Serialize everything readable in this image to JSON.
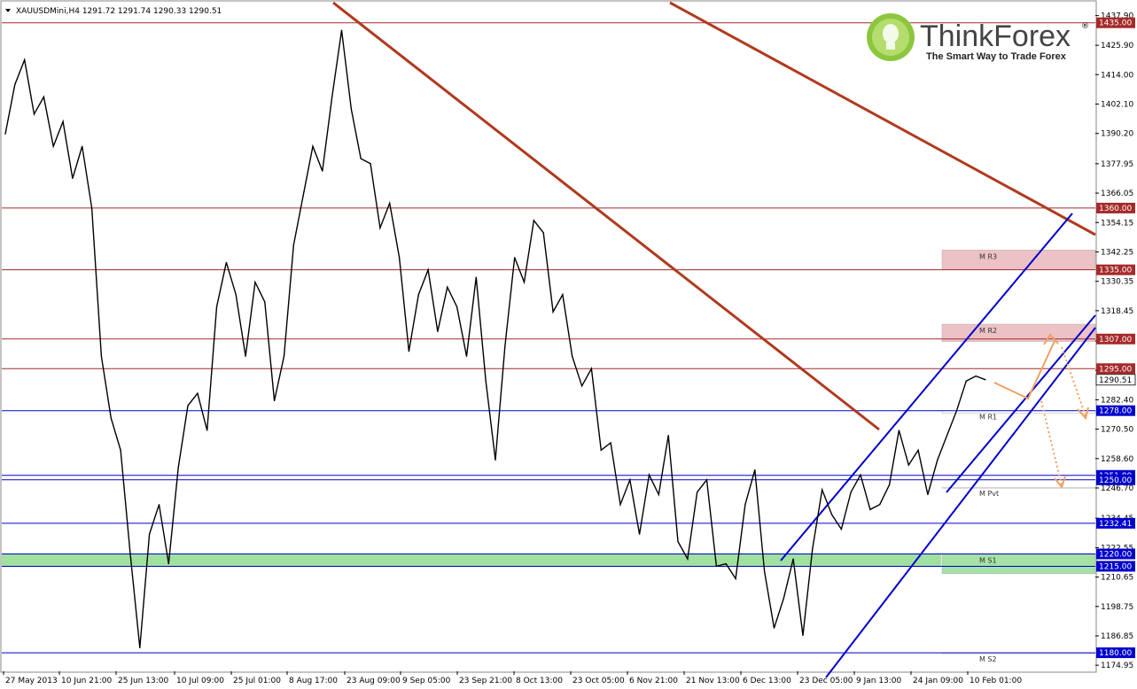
{
  "header": {
    "symbol_info": "XAUUSDMini,H4  1291.72 1291.74 1290.33 1290.51"
  },
  "logo": {
    "brand": "ThinkForex",
    "registered": "®",
    "tagline": "The Smart Way to Trade Forex"
  },
  "chart_data": {
    "type": "line",
    "title": "",
    "timeframe": "H4",
    "ylim": [
      1172.5,
      1443.5
    ],
    "x_tick_labels": [
      "27 May 2013",
      "10 Jun 21:00",
      "25 Jun 13:00",
      "10 Jul 09:00",
      "25 Jul 01:00",
      "8 Aug 17:00",
      "23 Aug 09:00",
      "9 Sep 05:00",
      "23 Sep 21:00",
      "8 Oct 13:00",
      "23 Oct 05:00",
      "6 Nov 21:00",
      "21 Nov 13:00",
      "6 Dec 13:00",
      "23 Dec 05:00",
      "9 Jan 13:00",
      "24 Jan 09:00",
      "10 Feb 01:00"
    ],
    "y_ticks": [
      "1437.90",
      "1425.90",
      "1414.00",
      "1402.10",
      "1390.20",
      "1377.95",
      "1366.05",
      "1354.15",
      "1342.25",
      "1330.35",
      "1318.45",
      "1306.20",
      "1294.30",
      "1282.40",
      "1270.50",
      "1258.60",
      "1246.70",
      "1234.45",
      "1222.55",
      "1210.65",
      "1198.75",
      "1186.85",
      "1174.95"
    ],
    "price_series": [
      1390,
      1410,
      1420,
      1398,
      1405,
      1385,
      1395,
      1372,
      1385,
      1360,
      1300,
      1275,
      1262,
      1220,
      1182,
      1228,
      1240,
      1216,
      1255,
      1280,
      1285,
      1270,
      1320,
      1338,
      1325,
      1300,
      1330,
      1322,
      1282,
      1300,
      1345,
      1365,
      1385,
      1375,
      1405,
      1432,
      1400,
      1380,
      1378,
      1352,
      1362,
      1340,
      1302,
      1325,
      1335,
      1310,
      1328,
      1320,
      1300,
      1332,
      1290,
      1258,
      1304,
      1340,
      1330,
      1355,
      1350,
      1318,
      1325,
      1300,
      1288,
      1295,
      1262,
      1265,
      1240,
      1250,
      1228,
      1252,
      1244,
      1268,
      1225,
      1218,
      1245,
      1250,
      1215,
      1216,
      1210,
      1240,
      1254,
      1213,
      1190,
      1202,
      1218,
      1187,
      1222,
      1246,
      1236,
      1230,
      1245,
      1252,
      1238,
      1240,
      1248,
      1270,
      1256,
      1262,
      1244,
      1258,
      1268,
      1278,
      1290,
      1292,
      1290.51
    ],
    "horizontal_levels": [
      {
        "price": 1435.0,
        "label": "1435.00",
        "color": "#a52a2a"
      },
      {
        "price": 1360.0,
        "label": "1360.00",
        "color": "#a52a2a"
      },
      {
        "price": 1335.0,
        "label": "1335.00",
        "color": "#a52a2a"
      },
      {
        "price": 1307.0,
        "label": "1307.00",
        "color": "#a52a2a"
      },
      {
        "price": 1295.0,
        "label": "1295.00",
        "color": "#a52a2a"
      },
      {
        "price": 1278.0,
        "label": "1278.00",
        "color": "#0000cd"
      },
      {
        "price": 1251.8,
        "label": "1251.80",
        "color": "#0000cd"
      },
      {
        "price": 1250.0,
        "label": "1250.00",
        "color": "#0000cd"
      },
      {
        "price": 1232.41,
        "label": "1232.41",
        "color": "#0000cd"
      },
      {
        "price": 1220.0,
        "label": "1220.00",
        "color": "#0000cd"
      },
      {
        "price": 1215.0,
        "label": "1215.00",
        "color": "#0000cd"
      },
      {
        "price": 1180.0,
        "label": "1180.00",
        "color": "#0000cd"
      }
    ],
    "current_price": {
      "price": 1290.51,
      "label": "1290.51"
    },
    "zones": [
      {
        "name": "M R3",
        "top": 1343,
        "bottom": 1335,
        "color": "#e8b4b8"
      },
      {
        "name": "M R2",
        "top": 1313,
        "bottom": 1306,
        "color": "#e8b4b8"
      },
      {
        "name": "M R1",
        "top": 1278,
        "bottom": 1277,
        "color": "#ffffff"
      },
      {
        "name": "M Pvt",
        "top": 1247,
        "bottom": 1247,
        "color": "#ffffff"
      },
      {
        "name": "M S1",
        "top": 1220,
        "bottom": 1212,
        "color": "#8fdc8f"
      },
      {
        "name": "M S2",
        "top": 1180,
        "bottom": 1180,
        "color": "#ffffff"
      }
    ],
    "support_band": {
      "top": 1220,
      "bottom": 1215,
      "color": "#8fdc8f"
    },
    "colors": {
      "resistance": "#a52a2a",
      "support": "#0000cd",
      "price": "#000000",
      "projection": "#f0a060",
      "trendline": "#b03a1e"
    }
  }
}
